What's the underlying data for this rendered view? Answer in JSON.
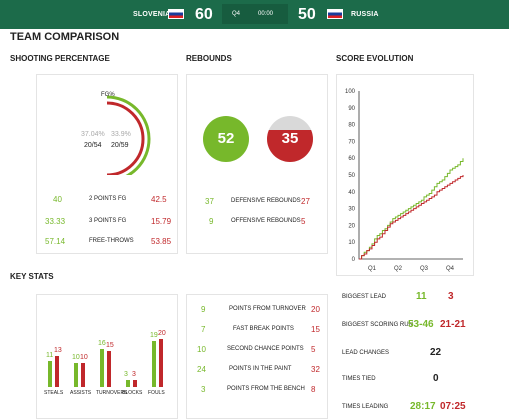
{
  "header": {
    "home_team": "SLOVENIA",
    "home_score": "60",
    "away_team": "RUSSIA",
    "away_score": "50",
    "period": "Q4",
    "clock": "00:00",
    "colors": {
      "bar": "#1c6b4a",
      "home": "#77b82b",
      "away": "#c0282b"
    }
  },
  "title": "TEAM COMPARISON",
  "shooting": {
    "title": "SHOOTING PERCENTAGE",
    "fg_label": "FG%",
    "home_pct": "37.04%",
    "away_pct": "33.9%",
    "home_made": "20/54",
    "away_made": "20/59",
    "rows": [
      {
        "label": "2 POINTS FG",
        "home": "40",
        "away": "42.5"
      },
      {
        "label": "3 POINTS FG",
        "home": "33.33",
        "away": "15.79"
      },
      {
        "label": "FREE-THROWS",
        "home": "57.14",
        "away": "53.85"
      }
    ]
  },
  "rebounds": {
    "title": "REBOUNDS",
    "home_total": "52",
    "away_total": "35",
    "rows": [
      {
        "label": "DEFENSIVE REBOUNDS",
        "home": "37",
        "away": "27"
      },
      {
        "label": "OFFENSIVE REBOUNDS",
        "home": "9",
        "away": "5"
      }
    ]
  },
  "score_evolution": {
    "title": "SCORE EVOLUTION",
    "y_ticks": [
      "100",
      "90",
      "80",
      "70",
      "60",
      "50",
      "40",
      "30",
      "20",
      "10",
      "0"
    ],
    "x_ticks": [
      "Q1",
      "Q2",
      "Q3",
      "Q4"
    ]
  },
  "chart_data": {
    "type": "line",
    "x": [
      0,
      1,
      2,
      3,
      4,
      5,
      6,
      7,
      8,
      9,
      10,
      11,
      12,
      13,
      14,
      15,
      16,
      17,
      18,
      19,
      20,
      21,
      22,
      23,
      24,
      25,
      26,
      27,
      28,
      29,
      30,
      31,
      32,
      33,
      34,
      35,
      36,
      37,
      38,
      39,
      40
    ],
    "series": [
      {
        "values": [
          0,
          2,
          4,
          5,
          7,
          9,
          12,
          14,
          15,
          17,
          18,
          20,
          22,
          24,
          25,
          26,
          27,
          28,
          29,
          30,
          31,
          32,
          33,
          34,
          35,
          37,
          38,
          39,
          41,
          43,
          45,
          46,
          47,
          49,
          51,
          53,
          54,
          55,
          56,
          58,
          60
        ]
      },
      {
        "values": [
          0,
          2,
          3,
          5,
          6,
          8,
          10,
          12,
          13,
          15,
          17,
          19,
          21,
          22,
          23,
          24,
          25,
          26,
          27,
          28,
          29,
          30,
          31,
          32,
          33,
          34,
          35,
          36,
          37,
          38,
          40,
          41,
          42,
          43,
          44,
          45,
          46,
          47,
          48,
          49,
          50
        ]
      }
    ],
    "ylim": [
      0,
      100
    ],
    "y_ticks": [
      0,
      10,
      20,
      30,
      40,
      50,
      60,
      70,
      80,
      90,
      100
    ],
    "x_categories": [
      "Q1",
      "Q2",
      "Q3",
      "Q4"
    ]
  },
  "key_stats": {
    "title": "KEY STATS",
    "groups": [
      {
        "label": "STEALS",
        "home": "11",
        "away": "13",
        "home_val": 11,
        "away_val": 13
      },
      {
        "label": "ASSISTS",
        "home": "10",
        "away": "10",
        "home_val": 10,
        "away_val": 10
      },
      {
        "label": "TURNOVERS",
        "home": "16",
        "away": "15",
        "home_val": 16,
        "away_val": 15
      },
      {
        "label": "BLOCKS",
        "home": "3",
        "away": "3",
        "home_val": 3,
        "away_val": 3
      },
      {
        "label": "FOULS",
        "home": "19",
        "away": "20",
        "home_val": 19,
        "away_val": 20
      }
    ]
  },
  "points": {
    "rows": [
      {
        "label": "POINTS FROM TURNOVER",
        "home": "9",
        "away": "20"
      },
      {
        "label": "FAST BREAK POINTS",
        "home": "7",
        "away": "15"
      },
      {
        "label": "SECOND CHANCE POINTS",
        "home": "10",
        "away": "5"
      },
      {
        "label": "POINTS IN THE PAINT",
        "home": "24",
        "away": "32"
      },
      {
        "label": "POINTS FROM THE BENCH",
        "home": "3",
        "away": "8"
      }
    ]
  },
  "summary": {
    "rows": [
      {
        "label": "BIGGEST LEAD",
        "home": "11",
        "away": "3"
      },
      {
        "label": "BIGGEST SCORING RUN",
        "home": "53-46",
        "away": "21-21"
      },
      {
        "label": "LEAD CHANGES",
        "value": "22"
      },
      {
        "label": "TIMES TIED",
        "value": "0"
      },
      {
        "label": "TIMES LEADING",
        "home": "28:17",
        "away": "07:25"
      }
    ]
  }
}
